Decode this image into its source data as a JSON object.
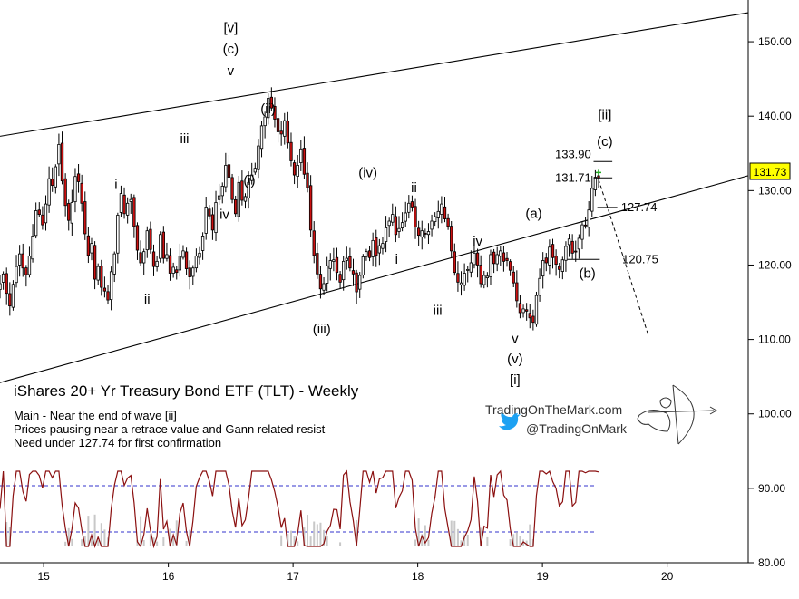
{
  "chart_data": {
    "type": "candlestick",
    "title": "iShares  20+ Yr Treasury Bond ETF (TLT) - Weekly",
    "notes": [
      "Main - Near the end of wave [ii]",
      "Prices pausing near a retrace value and Gann related resist",
      "Need under 127.74 for first confirmation"
    ],
    "branding": {
      "site": "TradingOnTheMark.com",
      "twitter": "@TradingOnMark"
    },
    "x_axis": {
      "range": [
        14.65,
        20.65
      ],
      "ticks": [
        "15",
        "16",
        "17",
        "18",
        "19",
        "20"
      ]
    },
    "y_axis": {
      "range": [
        80,
        155
      ],
      "ticks": [
        "80.00",
        "90.00",
        "100.00",
        "110.00",
        "120.00",
        "130.00",
        "140.00",
        "150.00"
      ]
    },
    "last_price": {
      "label": "131.73",
      "value": 131.73
    },
    "channel_lines": [
      {
        "from": [
          14.65,
          137.3
        ],
        "to": [
          20.65,
          153.9
        ]
      },
      {
        "from": [
          14.65,
          104.2
        ],
        "to": [
          20.65,
          132.0
        ]
      }
    ],
    "price_levels": [
      {
        "label": "133.90",
        "value": 133.9
      },
      {
        "label": "131.71",
        "value": 131.71
      },
      {
        "label": "127.74",
        "value": 127.74
      },
      {
        "label": "120.75",
        "value": 120.75
      }
    ],
    "projection": {
      "from": [
        19.45,
        131.5
      ],
      "to": [
        19.85,
        110.5
      ]
    },
    "wave_labels": [
      {
        "text": "[v]",
        "x": 16.5,
        "y": 151.3
      },
      {
        "text": "(c)",
        "x": 16.5,
        "y": 148.4
      },
      {
        "text": "v",
        "x": 16.5,
        "y": 145.5
      },
      {
        "text": "(ii)",
        "x": 16.8,
        "y": 140.4
      },
      {
        "text": "(i)",
        "x": 16.65,
        "y": 130.8
      },
      {
        "text": "iii",
        "x": 16.13,
        "y": 136.4
      },
      {
        "text": "iv",
        "x": 16.45,
        "y": 126.2
      },
      {
        "text": "i",
        "x": 15.58,
        "y": 130.2
      },
      {
        "text": "ii",
        "x": 15.83,
        "y": 114.8
      },
      {
        "text": "(iii)",
        "x": 17.23,
        "y": 110.8
      },
      {
        "text": "(iv)",
        "x": 17.6,
        "y": 131.8
      },
      {
        "text": "ii",
        "x": 17.97,
        "y": 129.8
      },
      {
        "text": "i",
        "x": 17.83,
        "y": 120.2
      },
      {
        "text": "iii",
        "x": 18.16,
        "y": 113.3
      },
      {
        "text": "iv",
        "x": 18.48,
        "y": 122.6
      },
      {
        "text": "(a)",
        "x": 18.93,
        "y": 126.3
      },
      {
        "text": "(b)",
        "x": 19.36,
        "y": 118.3
      },
      {
        "text": "v",
        "x": 18.78,
        "y": 109.5
      },
      {
        "text": "(v)",
        "x": 18.78,
        "y": 106.8
      },
      {
        "text": "[i]",
        "x": 18.78,
        "y": 104.0
      },
      {
        "text": "[ii]",
        "x": 19.5,
        "y": 139.6
      },
      {
        "text": "(c)",
        "x": 19.5,
        "y": 136.0
      }
    ],
    "weekly_closes": [
      117.5,
      118.8,
      116.2,
      114.5,
      117.4,
      119.8,
      121.5,
      119.6,
      118.7,
      121.2,
      123.9,
      127.3,
      126.8,
      125.4,
      128.2,
      131.6,
      130.7,
      133.2,
      136.2,
      131.3,
      128.0,
      126.0,
      128.4,
      131.9,
      131.2,
      128.3,
      124.2,
      121.3,
      122.9,
      118.1,
      119.8,
      117.0,
      116.5,
      115.3,
      119.1,
      121.5,
      126.7,
      129.6,
      126.9,
      128.3,
      128.8,
      125.2,
      122.0,
      120.3,
      121.8,
      124.6,
      122.1,
      119.8,
      120.5,
      124.1,
      120.9,
      121.4,
      118.9,
      119.7,
      119.0,
      121.2,
      121.9,
      119.5,
      118.4,
      119.6,
      121.2,
      121.6,
      123.9,
      127.8,
      126.6,
      124.7,
      128.4,
      129.3,
      130.6,
      133.4,
      131.8,
      128.8,
      126.9,
      131.1,
      128.7,
      129.2,
      131.1,
      132.1,
      133.0,
      136.0,
      138.7,
      139.9,
      142.4,
      141.1,
      139.6,
      137.9,
      137.6,
      139.4,
      136.4,
      134.0,
      132.1,
      133.4,
      135.6,
      132.2,
      130.4,
      124.7,
      121.3,
      118.8,
      116.8,
      117.5,
      119.9,
      120.6,
      120.7,
      119.0,
      117.7,
      120.5,
      120.9,
      119.6,
      118.8,
      116.4,
      118.6,
      121.1,
      121.8,
      121.0,
      123.3,
      121.3,
      122.6,
      122.9,
      125.0,
      125.9,
      126.8,
      124.1,
      124.9,
      125.7,
      127.0,
      128.3,
      127.8,
      125.1,
      124.0,
      124.6,
      124.2,
      124.5,
      125.9,
      126.5,
      127.2,
      128.2,
      126.2,
      125.2,
      121.9,
      119.0,
      117.7,
      117.6,
      118.9,
      119.4,
      120.3,
      121.6,
      120.0,
      117.5,
      118.6,
      118.5,
      121.4,
      120.2,
      121.4,
      121.9,
      120.5,
      120.6,
      119.3,
      117.6,
      115.2,
      113.6,
      114.1,
      113.8,
      112.9,
      112.3,
      115.9,
      118.2,
      120.6,
      120.3,
      122.4,
      121.0,
      120.1,
      119.4,
      120.7,
      122.5,
      123.5,
      121.6,
      121.8,
      123.6,
      125.4,
      125.3,
      127.4,
      130.3,
      131.8,
      131.7
    ]
  }
}
